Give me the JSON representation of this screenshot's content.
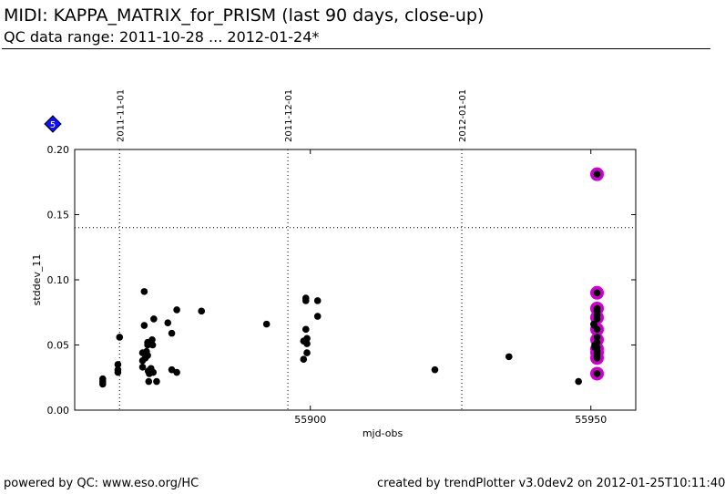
{
  "header": {
    "title": "MIDI: KAPPA_MATRIX_for_PRISM (last 90 days, close-up)",
    "subtitle": "QC data range: 2011-10-28 ... 2012-01-24*"
  },
  "footer": {
    "left": "powered by QC: www.eso.org/HC",
    "right": "created by trendPlotter v3.0dev2 on 2012-01-25T10:11:40"
  },
  "badge": {
    "label": "5",
    "color": "#1010ff"
  },
  "colors": {
    "points": "#000000",
    "highlight": "#cc00cc",
    "axis": "#000000"
  },
  "chart_data": {
    "type": "scatter",
    "xlabel": "mjd-obs",
    "ylabel": "stddev_11",
    "xlim": [
      55858,
      55958
    ],
    "ylim": [
      0.0,
      0.2
    ],
    "x_ticks": [
      55900,
      55950
    ],
    "y_ticks": [
      "0.00",
      "0.05",
      "0.10",
      "0.15",
      "0.20"
    ],
    "grid": false,
    "threshold_y": 0.14,
    "date_markers": [
      {
        "label": "2011-11-01",
        "x": 55866
      },
      {
        "label": "2011-12-01",
        "x": 55896
      },
      {
        "label": "2012-01-01",
        "x": 55927
      }
    ],
    "series": [
      {
        "points": [
          [
            55863,
            0.02
          ],
          [
            55863,
            0.022
          ],
          [
            55863,
            0.024
          ],
          [
            55865.7,
            0.029
          ],
          [
            55865.7,
            0.031
          ],
          [
            55865.7,
            0.035
          ],
          [
            55866,
            0.056
          ],
          [
            55870.1,
            0.033
          ],
          [
            55870.1,
            0.038
          ],
          [
            55870.1,
            0.044
          ],
          [
            55870.4,
            0.091
          ],
          [
            55870.4,
            0.065
          ],
          [
            55870.6,
            0.04
          ],
          [
            55870.8,
            0.045
          ],
          [
            55871,
            0.042
          ],
          [
            55871,
            0.05
          ],
          [
            55871,
            0.052
          ],
          [
            55871.1,
            0.03
          ],
          [
            55871.2,
            0.022
          ],
          [
            55871.3,
            0.028
          ],
          [
            55871.6,
            0.032
          ],
          [
            55871.8,
            0.054
          ],
          [
            55871.9,
            0.05
          ],
          [
            55872,
            0.029
          ],
          [
            55872.1,
            0.07
          ],
          [
            55872.6,
            0.022
          ],
          [
            55874.6,
            0.067
          ],
          [
            55875.3,
            0.059
          ],
          [
            55875.3,
            0.031
          ],
          [
            55876.2,
            0.029
          ],
          [
            55876.2,
            0.077
          ],
          [
            55880.6,
            0.076
          ],
          [
            55892.2,
            0.066
          ],
          [
            55898.8,
            0.039
          ],
          [
            55898.8,
            0.053
          ],
          [
            55899.2,
            0.086
          ],
          [
            55899.2,
            0.084
          ],
          [
            55899.2,
            0.062
          ],
          [
            55899.4,
            0.044
          ],
          [
            55899.4,
            0.055
          ],
          [
            55899.4,
            0.051
          ],
          [
            55901.3,
            0.084
          ],
          [
            55901.3,
            0.072
          ],
          [
            55922.2,
            0.031
          ],
          [
            55935.4,
            0.041
          ],
          [
            55947.8,
            0.022
          ],
          [
            55950.5,
            0.066
          ],
          [
            55950.6,
            0.065
          ],
          [
            55950.7,
            0.05
          ],
          [
            55950.7,
            0.048
          ],
          [
            55951.1,
            0.181
          ],
          [
            55951.1,
            0.09
          ],
          [
            55951.1,
            0.078
          ],
          [
            55951.1,
            0.076
          ],
          [
            55951.1,
            0.073
          ],
          [
            55951.1,
            0.07
          ],
          [
            55951.1,
            0.062
          ],
          [
            55951.1,
            0.056
          ],
          [
            55951.1,
            0.052
          ],
          [
            55951.1,
            0.048
          ],
          [
            55951.1,
            0.046
          ],
          [
            55951.1,
            0.044
          ],
          [
            55951.1,
            0.042
          ],
          [
            55951.1,
            0.04
          ],
          [
            55951.1,
            0.028
          ]
        ]
      },
      {
        "style": "highlight",
        "points": [
          [
            55951.1,
            0.181
          ],
          [
            55951.1,
            0.09
          ],
          [
            55951.1,
            0.078
          ],
          [
            55951.1,
            0.071
          ],
          [
            55951.1,
            0.062
          ],
          [
            55951.1,
            0.054
          ],
          [
            55951.1,
            0.047
          ],
          [
            55951.1,
            0.044
          ],
          [
            55951.1,
            0.04
          ],
          [
            55951.1,
            0.028
          ]
        ]
      }
    ]
  }
}
